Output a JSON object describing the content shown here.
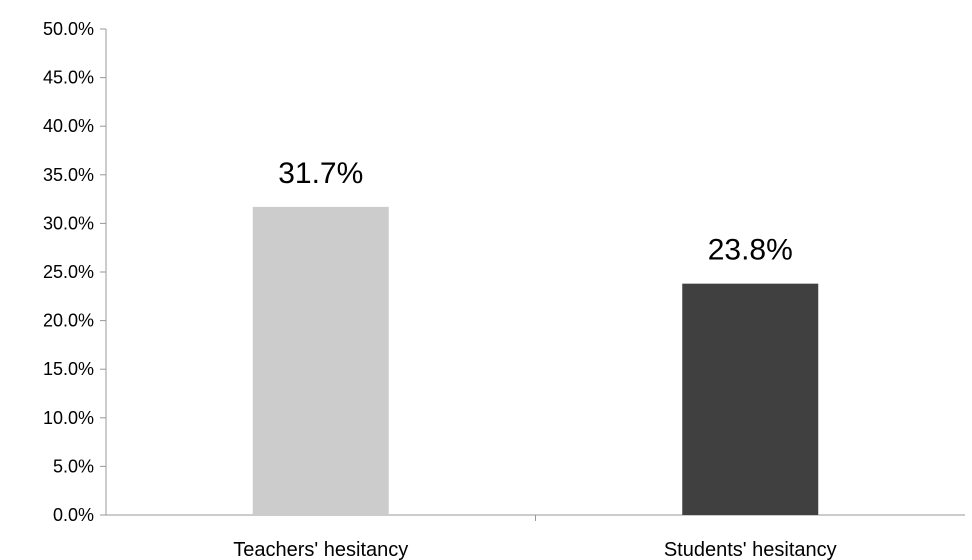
{
  "chart_data": {
    "type": "bar",
    "categories": [
      "Teachers' hesitancy",
      "Students' hesitancy"
    ],
    "values": [
      31.7,
      23.8
    ],
    "data_labels": [
      "31.7%",
      "23.8%"
    ],
    "bar_colors": [
      "#cccccc",
      "#404040"
    ],
    "axis_color": "#999999",
    "ylim": [
      0,
      50
    ],
    "yticks": [
      0,
      5,
      10,
      15,
      20,
      25,
      30,
      35,
      40,
      45,
      50
    ],
    "ytick_labels": [
      "0.0%",
      "5.0%",
      "10.0%",
      "15.0%",
      "20.0%",
      "25.0%",
      "30.0%",
      "35.0%",
      "40.0%",
      "45.0%",
      "50.0%"
    ],
    "grid": false,
    "legend": "none"
  }
}
